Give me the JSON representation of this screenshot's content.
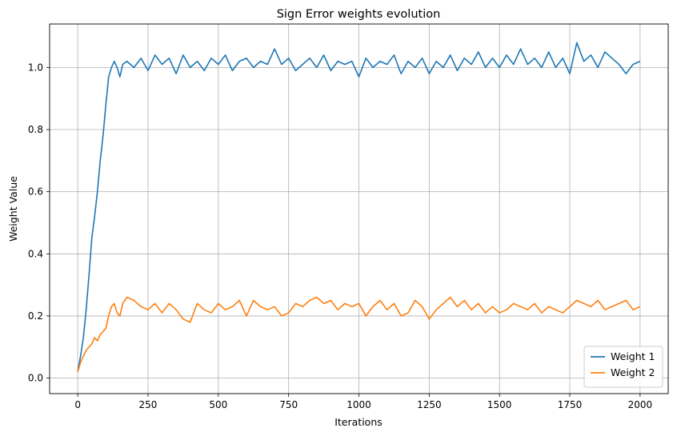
{
  "chart_data": {
    "type": "line",
    "title": "Sign Error weights evolution",
    "xlabel": "Iterations",
    "ylabel": "Weight Value",
    "xlim": [
      -100,
      2100
    ],
    "ylim": [
      -0.05,
      1.14
    ],
    "xticks": [
      0,
      250,
      500,
      750,
      1000,
      1250,
      1500,
      1750,
      2000
    ],
    "yticks": [
      0.0,
      0.2,
      0.4,
      0.6,
      0.8,
      1.0
    ],
    "xtick_labels": [
      "0",
      "250",
      "500",
      "750",
      "1000",
      "1250",
      "1500",
      "1750",
      "2000"
    ],
    "ytick_labels": [
      "0.0",
      "0.2",
      "0.4",
      "0.6",
      "0.8",
      "1.0"
    ],
    "grid": true,
    "legend_position": "bottom-right",
    "series": [
      {
        "name": "Weight 1",
        "color": "#1f77b4",
        "x": [
          0,
          10,
          20,
          30,
          40,
          50,
          60,
          70,
          80,
          90,
          100,
          110,
          120,
          130,
          140,
          150,
          160,
          175,
          200,
          225,
          250,
          275,
          300,
          325,
          350,
          375,
          400,
          425,
          450,
          475,
          500,
          525,
          550,
          575,
          600,
          625,
          650,
          675,
          700,
          725,
          750,
          775,
          800,
          825,
          850,
          875,
          900,
          925,
          950,
          975,
          1000,
          1025,
          1050,
          1075,
          1100,
          1125,
          1150,
          1175,
          1200,
          1225,
          1250,
          1275,
          1300,
          1325,
          1350,
          1375,
          1400,
          1425,
          1450,
          1475,
          1500,
          1525,
          1550,
          1575,
          1600,
          1625,
          1650,
          1675,
          1700,
          1725,
          1750,
          1775,
          1800,
          1825,
          1850,
          1875,
          1900,
          1925,
          1950,
          1975,
          2000
        ],
        "y": [
          0.02,
          0.07,
          0.13,
          0.22,
          0.33,
          0.45,
          0.52,
          0.6,
          0.7,
          0.78,
          0.88,
          0.97,
          1.0,
          1.02,
          1.0,
          0.97,
          1.01,
          1.02,
          1.0,
          1.03,
          0.99,
          1.04,
          1.01,
          1.03,
          0.98,
          1.04,
          1.0,
          1.02,
          0.99,
          1.03,
          1.01,
          1.04,
          0.99,
          1.02,
          1.03,
          1.0,
          1.02,
          1.01,
          1.06,
          1.01,
          1.03,
          0.99,
          1.01,
          1.03,
          1.0,
          1.04,
          0.99,
          1.02,
          1.01,
          1.02,
          0.97,
          1.03,
          1.0,
          1.02,
          1.01,
          1.04,
          0.98,
          1.02,
          1.0,
          1.03,
          0.98,
          1.02,
          1.0,
          1.04,
          0.99,
          1.03,
          1.01,
          1.05,
          1.0,
          1.03,
          1.0,
          1.04,
          1.01,
          1.06,
          1.01,
          1.03,
          1.0,
          1.05,
          1.0,
          1.03,
          0.98,
          1.08,
          1.02,
          1.04,
          1.0,
          1.05,
          1.03,
          1.01,
          0.98,
          1.01,
          1.02
        ]
      },
      {
        "name": "Weight 2",
        "color": "#ff7f0e",
        "x": [
          0,
          10,
          20,
          30,
          40,
          50,
          60,
          70,
          80,
          90,
          100,
          110,
          120,
          130,
          140,
          150,
          160,
          175,
          200,
          225,
          250,
          275,
          300,
          325,
          350,
          375,
          400,
          425,
          450,
          475,
          500,
          525,
          550,
          575,
          600,
          625,
          650,
          675,
          700,
          725,
          750,
          775,
          800,
          825,
          850,
          875,
          900,
          925,
          950,
          975,
          1000,
          1025,
          1050,
          1075,
          1100,
          1125,
          1150,
          1175,
          1200,
          1225,
          1250,
          1275,
          1300,
          1325,
          1350,
          1375,
          1400,
          1425,
          1450,
          1475,
          1500,
          1525,
          1550,
          1575,
          1600,
          1625,
          1650,
          1675,
          1700,
          1725,
          1750,
          1775,
          1800,
          1825,
          1850,
          1875,
          1900,
          1925,
          1950,
          1975,
          2000
        ],
        "y": [
          0.02,
          0.05,
          0.07,
          0.09,
          0.1,
          0.11,
          0.13,
          0.12,
          0.14,
          0.15,
          0.16,
          0.2,
          0.23,
          0.24,
          0.21,
          0.2,
          0.24,
          0.26,
          0.25,
          0.23,
          0.22,
          0.24,
          0.21,
          0.24,
          0.22,
          0.19,
          0.18,
          0.24,
          0.22,
          0.21,
          0.24,
          0.22,
          0.23,
          0.25,
          0.2,
          0.25,
          0.23,
          0.22,
          0.23,
          0.2,
          0.21,
          0.24,
          0.23,
          0.25,
          0.26,
          0.24,
          0.25,
          0.22,
          0.24,
          0.23,
          0.24,
          0.2,
          0.23,
          0.25,
          0.22,
          0.24,
          0.2,
          0.21,
          0.25,
          0.23,
          0.19,
          0.22,
          0.24,
          0.26,
          0.23,
          0.25,
          0.22,
          0.24,
          0.21,
          0.23,
          0.21,
          0.22,
          0.24,
          0.23,
          0.22,
          0.24,
          0.21,
          0.23,
          0.22,
          0.21,
          0.23,
          0.25,
          0.24,
          0.23,
          0.25,
          0.22,
          0.23,
          0.24,
          0.25,
          0.22,
          0.23
        ]
      }
    ]
  }
}
